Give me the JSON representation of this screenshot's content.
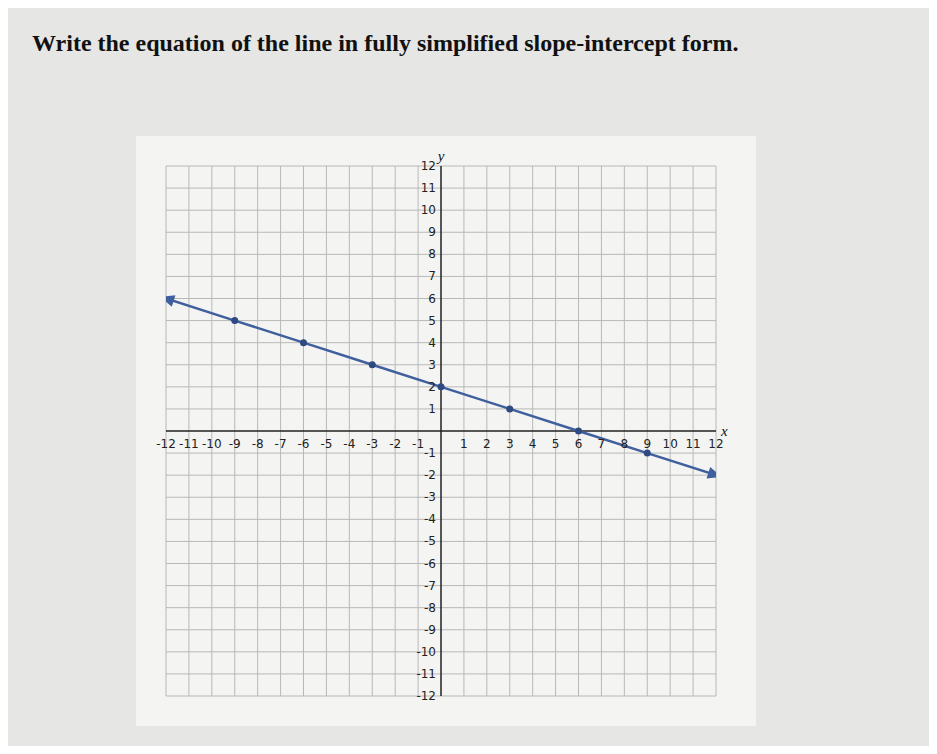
{
  "chart_data": {
    "type": "line",
    "title": "Write the equation of the line in fully simplified slope-intercept form.",
    "x_label": "x",
    "y_label": "y",
    "x": [
      -12,
      -9,
      -6,
      -3,
      0,
      3,
      6,
      9,
      12
    ],
    "y": [
      6,
      5,
      4,
      3,
      2,
      1,
      0,
      -1,
      -2
    ],
    "color": "#3f5f9e",
    "marker": "circle",
    "line_style": "solid",
    "xlim": [
      -12,
      12
    ],
    "ylim": [
      -12,
      12
    ],
    "xticks": [
      -12,
      -11,
      -10,
      -9,
      -8,
      -7,
      -6,
      -5,
      -4,
      -3,
      -2,
      -1,
      1,
      2,
      3,
      4,
      5,
      6,
      7,
      8,
      9,
      10,
      11,
      12
    ],
    "yticks": [
      -12,
      -11,
      -10,
      -9,
      -8,
      -7,
      -6,
      -5,
      -4,
      -3,
      -2,
      -1,
      1,
      2,
      3,
      4,
      5,
      6,
      7,
      8,
      9,
      10,
      11,
      12
    ],
    "grid": true
  }
}
